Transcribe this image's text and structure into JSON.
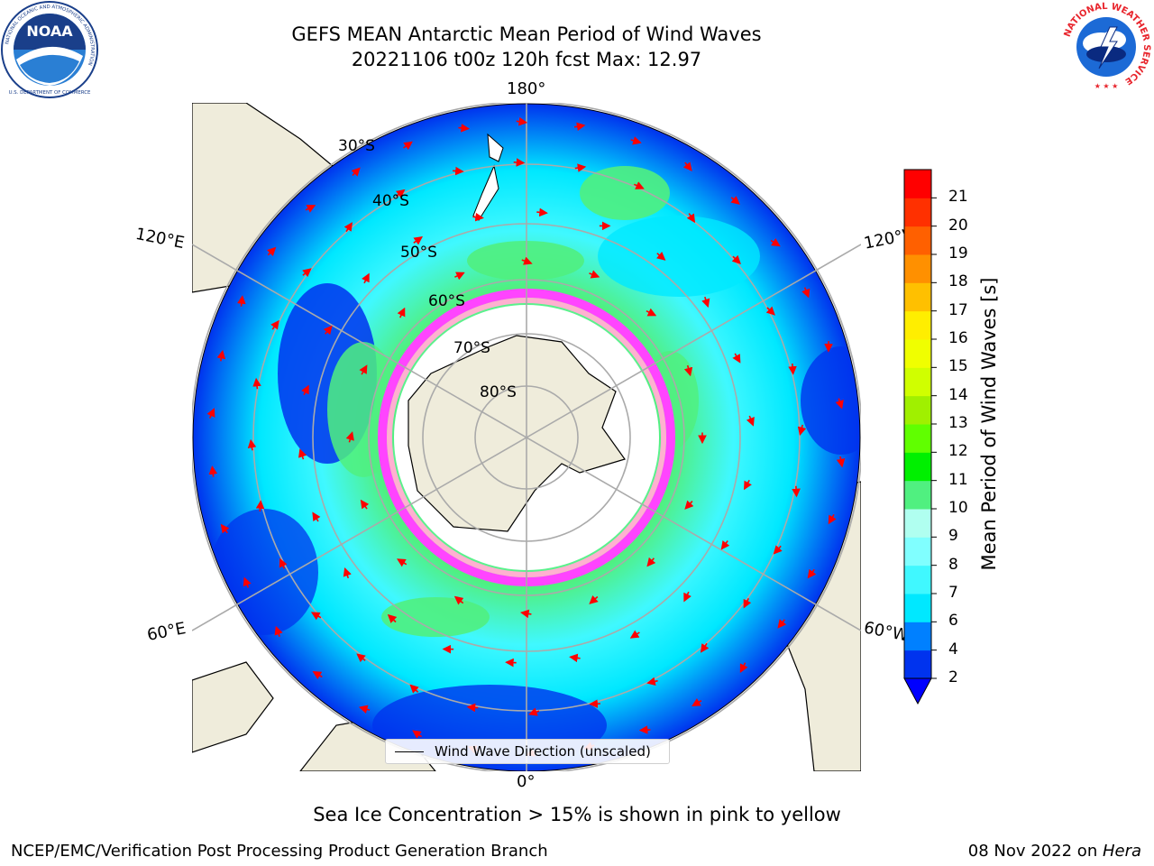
{
  "title": {
    "line1": "GEFS MEAN Antarctic Mean Period of Wind Waves",
    "line2": "20221106 t00z 120h fcst   Max: 12.97"
  },
  "logos": {
    "noaa": {
      "text": "NOAA",
      "ring_text": "NATIONAL OCEANIC AND ATMOSPHERIC ADMINISTRATION",
      "ring_text_bottom": "U.S. DEPARTMENT OF COMMERCE"
    },
    "nws": {
      "ring_text": "NATIONAL WEATHER SERVICE"
    }
  },
  "map": {
    "projection": "south-polar-stereographic",
    "longitude_labels": [
      "180°",
      "120°E",
      "120°W",
      "60°E",
      "60°W",
      "0°"
    ],
    "latitude_labels": [
      "30°S",
      "40°S",
      "50°S",
      "60°S",
      "70°S",
      "80°S"
    ],
    "legend": "Wind Wave Direction (unscaled)",
    "land_color": "#efecdb",
    "ice_colors": [
      "#ff44ff",
      "#ffb0d0",
      "#ffd040"
    ],
    "arrow_color": "#ff0000"
  },
  "colorbar": {
    "label": "Mean Period of Wind Waves [s]",
    "ticks": [
      "2",
      "4",
      "6",
      "7",
      "8",
      "9",
      "10",
      "11",
      "12",
      "13",
      "14",
      "15",
      "16",
      "17",
      "18",
      "19",
      "20",
      "21"
    ],
    "colors": [
      "#0033ee",
      "#0080ff",
      "#00e8ff",
      "#40f8ff",
      "#80ffff",
      "#b0fff0",
      "#50f080",
      "#00f000",
      "#60ff00",
      "#a0f000",
      "#d0ff00",
      "#f0ff00",
      "#ffee00",
      "#ffc000",
      "#ff9000",
      "#ff6000",
      "#ff3000",
      "#ff0000"
    ],
    "under_color": "#0000ff"
  },
  "notes": {
    "ice": "Sea Ice Concentration > 15% is shown in pink to yellow"
  },
  "footer": {
    "left": "NCEP/EMC/Verification Post Processing Product Generation Branch",
    "right_date": "08 Nov 2022 on ",
    "right_host": "Hera"
  }
}
